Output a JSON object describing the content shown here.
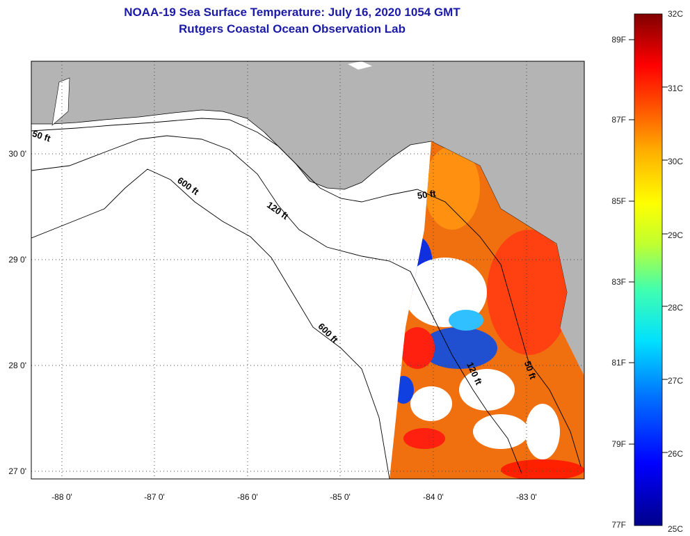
{
  "title": "NOAA-19 Sea Surface Temperature:  July 16, 2020 1054 GMT",
  "subtitle": "Rutgers Coastal Ocean Observation Lab",
  "lon_ticks": [
    "-88 0'",
    "-87 0'",
    "-86 0'",
    "-85 0'",
    "-84 0'",
    "-83 0'"
  ],
  "lat_ticks": [
    "30 0'",
    "29 0'",
    "28 0'",
    "27 0'"
  ],
  "isobaths": [
    "50 ft",
    "120 ft",
    "600 ft"
  ],
  "colorbar": {
    "celsius": [
      "32C",
      "31C",
      "30C",
      "29C",
      "28C",
      "27C",
      "26C",
      "25C"
    ],
    "fahrenheit": [
      "89F",
      "87F",
      "85F",
      "83F",
      "81F",
      "79F",
      "77F"
    ]
  },
  "colors": {
    "land": "#b4b4b4",
    "title": "#1a1aa6",
    "missing": "#ffffff"
  }
}
